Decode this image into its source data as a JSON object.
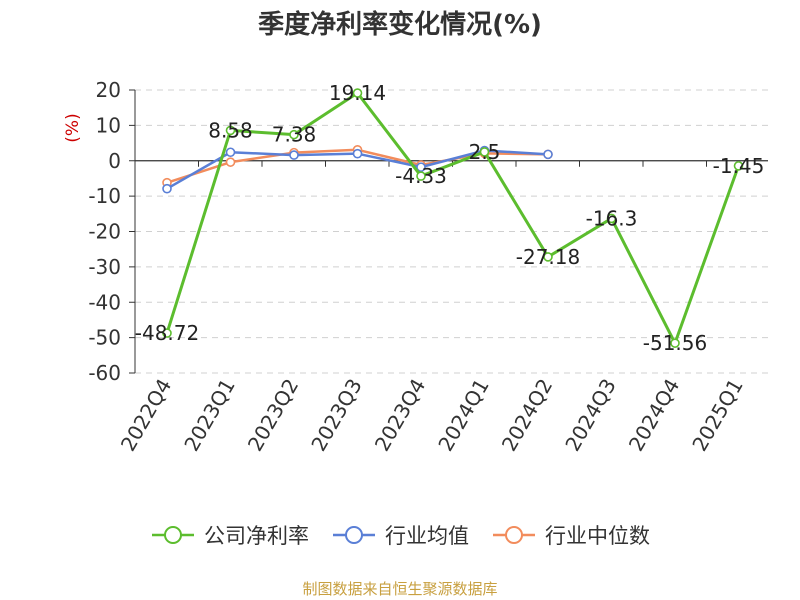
{
  "chart_data": {
    "type": "line",
    "title": "季度净利率变化情况(%)",
    "ylabel": "(%)",
    "xlabel": "",
    "categories": [
      "2022Q4",
      "2023Q1",
      "2023Q2",
      "2023Q3",
      "2023Q4",
      "2024Q1",
      "2024Q2",
      "2024Q3",
      "2024Q4",
      "2025Q1"
    ],
    "ylim": [
      -60,
      20
    ],
    "yticks": [
      20,
      10,
      0,
      -10,
      -20,
      -30,
      -40,
      -50,
      -60
    ],
    "grid": true,
    "legend_position": "bottom",
    "series": [
      {
        "name": "公司净利率",
        "color": "#5cbd2e",
        "values": [
          -48.72,
          8.58,
          7.38,
          19.14,
          -4.33,
          2.5,
          -27.18,
          -16.3,
          -51.56,
          -1.45
        ],
        "labels": [
          "-48.72",
          "8.58",
          "7.38",
          "19.14",
          "-4.33",
          "2.5",
          "-27.18",
          "-16.3",
          "-51.56",
          "-1.45"
        ]
      },
      {
        "name": "行业均值",
        "color": "#5a7fd6",
        "values": [
          -7.9,
          2.4,
          1.6,
          2.0,
          -1.8,
          2.9,
          1.8,
          null,
          null,
          null
        ]
      },
      {
        "name": "行业中位数",
        "color": "#f28c5c",
        "values": [
          -6.2,
          -0.4,
          2.3,
          3.1,
          -1.2,
          2.1,
          1.8,
          null,
          null,
          null
        ]
      }
    ]
  },
  "source": "制图数据来自恒生聚源数据库"
}
